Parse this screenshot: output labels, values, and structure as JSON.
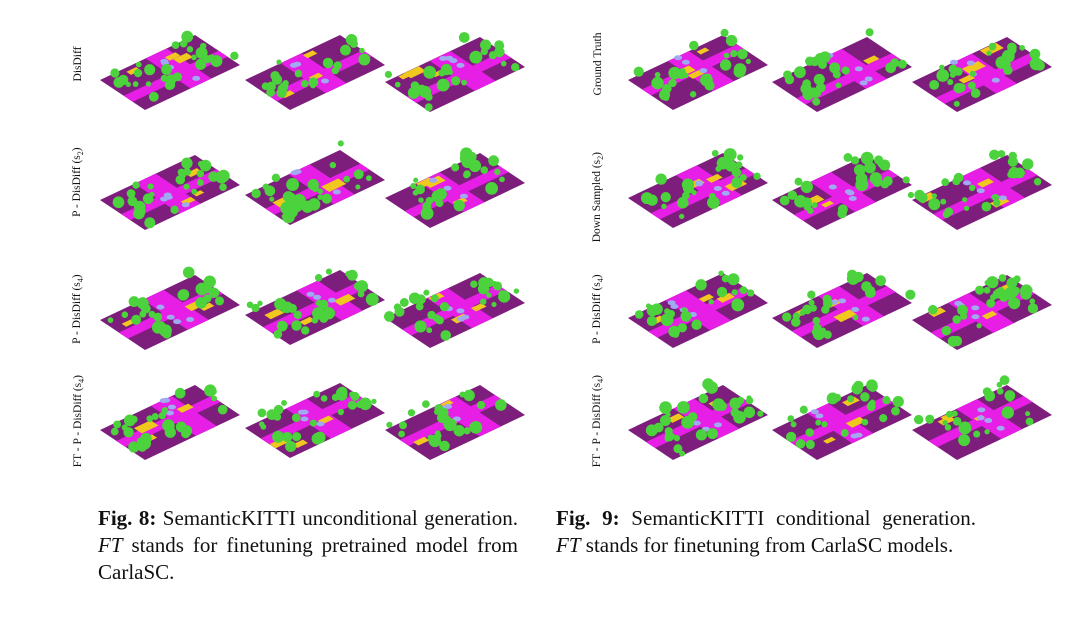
{
  "figure8": {
    "row_labels": [
      {
        "main": "DisDiff",
        "sub": ""
      },
      {
        "main": "P - DisDiff (s",
        "sub": "2",
        "end": ")"
      },
      {
        "main": "P - DisDiff (s",
        "sub": "4",
        "end": ")"
      },
      {
        "main": "FT - P - DisDiff (s",
        "sub": "4",
        "end": ")"
      }
    ],
    "caption": {
      "label": "Fig. 8:",
      "pre": " SemanticKITTI unconditional generation. ",
      "ft": "FT",
      "post": " stands for finetuning pretrained model from CarlaSC."
    }
  },
  "figure9": {
    "row_labels": [
      {
        "main": "Ground Truth",
        "sub": ""
      },
      {
        "main": "Down Sampled (s",
        "sub": "2",
        "end": ")"
      },
      {
        "main": "P - DisDiff (s",
        "sub": "4",
        "end": ")"
      },
      {
        "main": "FT - P - DisDiff (s",
        "sub": "4",
        "end": ")"
      }
    ],
    "caption": {
      "label": "Fig. 9:",
      "pre": " SemanticKITTI conditional generation. ",
      "ft": "FT",
      "post": " stands for finetuning from CarlaSC models."
    }
  },
  "colors": {
    "road": "#e61ee6",
    "sidewalk": "#7d1e7d",
    "vegetation": "#4bd23c",
    "building": "#f0c81e",
    "car": "#a0aaf0"
  }
}
